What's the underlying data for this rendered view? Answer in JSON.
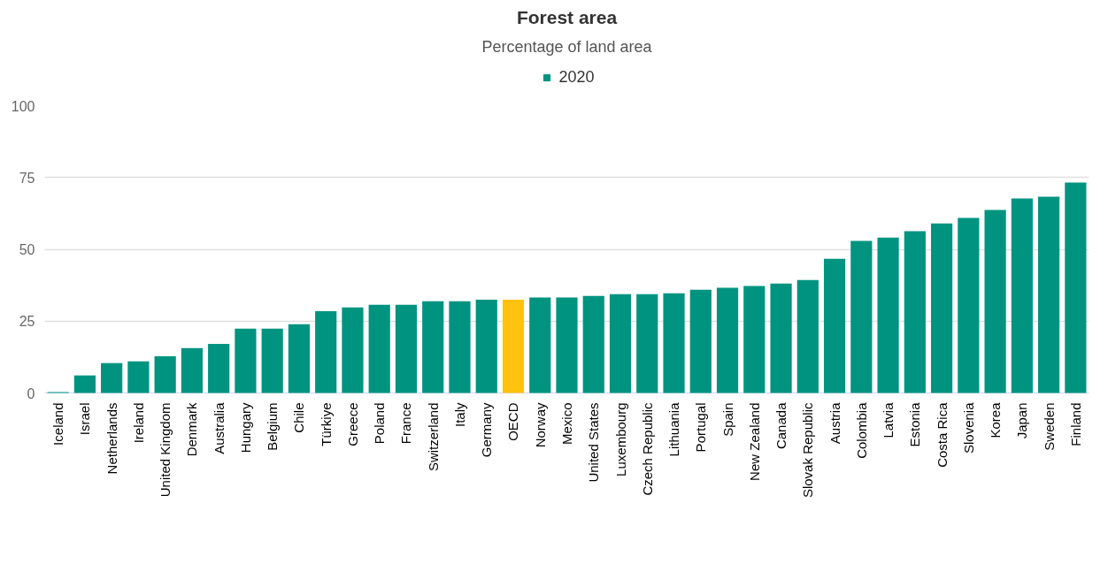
{
  "chart_data": {
    "type": "bar",
    "title": "Forest area",
    "subtitle": "Percentage of land area",
    "categories": [
      "Iceland",
      "Israel",
      "Netherlands",
      "Ireland",
      "United Kingdom",
      "Denmark",
      "Australia",
      "Hungary",
      "Belgium",
      "Chile",
      "Türkiye",
      "Greece",
      "Poland",
      "France",
      "Switzerland",
      "Italy",
      "Germany",
      "OECD",
      "Norway",
      "Mexico",
      "United States",
      "Luxembourg",
      "Czech Republic",
      "Lithuania",
      "Portugal",
      "Spain",
      "New Zealand",
      "Canada",
      "Slovak Republic",
      "Austria",
      "Colombia",
      "Latvia",
      "Estonia",
      "Costa Rica",
      "Slovenia",
      "Korea",
      "Japan",
      "Sweden",
      "Finland"
    ],
    "series": [
      {
        "name": "2020",
        "color": "#009480",
        "colors": [
          "#009480",
          "#009480",
          "#009480",
          "#009480",
          "#009480",
          "#009480",
          "#009480",
          "#009480",
          "#009480",
          "#009480",
          "#009480",
          "#009480",
          "#009480",
          "#009480",
          "#009480",
          "#009480",
          "#009480",
          "#ffc20e",
          "#009480",
          "#009480",
          "#009480",
          "#009480",
          "#009480",
          "#009480",
          "#009480",
          "#009480",
          "#009480",
          "#009480",
          "#009480",
          "#009480",
          "#009480",
          "#009480",
          "#009480",
          "#009480",
          "#009480",
          "#009480",
          "#009480",
          "#009480",
          "#009480"
        ],
        "values": [
          0.3,
          6.1,
          10.4,
          11.0,
          12.8,
          15.6,
          17.1,
          22.4,
          22.4,
          23.9,
          28.5,
          29.8,
          30.7,
          30.7,
          31.9,
          31.9,
          32.5,
          32.5,
          33.2,
          33.2,
          33.8,
          34.4,
          34.4,
          34.7,
          35.9,
          36.6,
          37.2,
          38.1,
          39.3,
          46.7,
          52.9,
          54.1,
          56.3,
          59.0,
          60.9,
          63.7,
          67.7,
          68.3,
          73.2
        ]
      }
    ],
    "ylim": [
      0,
      100
    ],
    "yticks": [
      0,
      25,
      50,
      75,
      100
    ],
    "grid": "y",
    "legend": "top"
  }
}
